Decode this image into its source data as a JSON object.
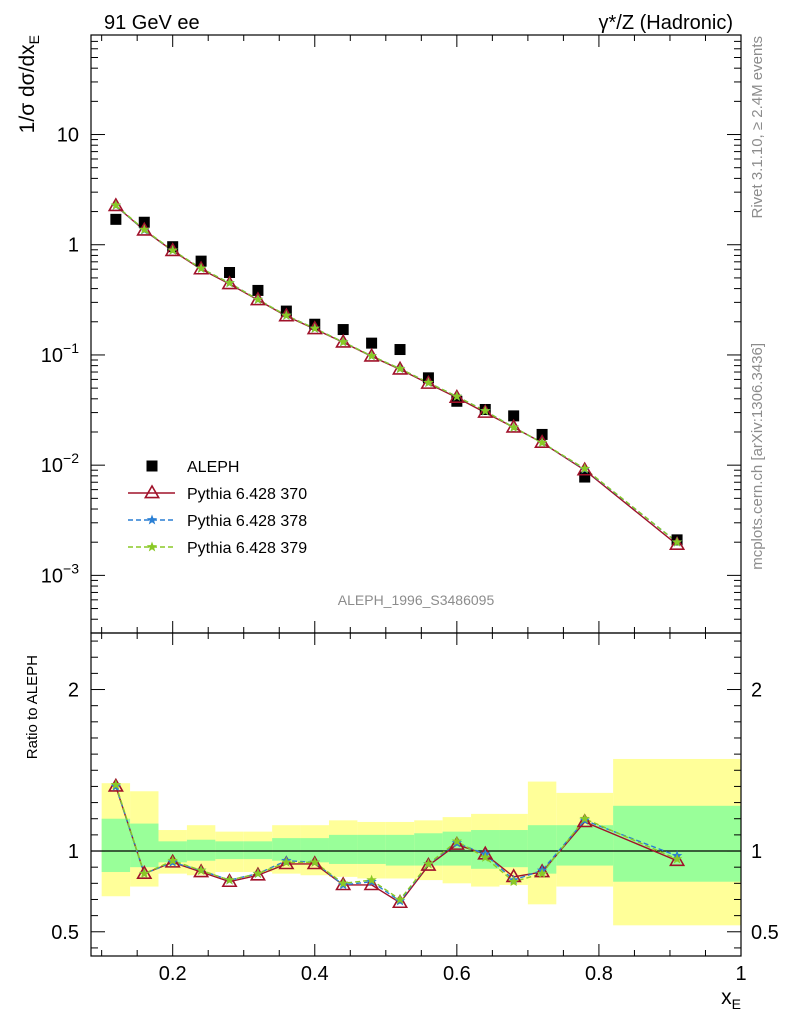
{
  "header": {
    "left": "91 GeV ee",
    "right": "γ*/Z (Hadronic)"
  },
  "side_labels": {
    "rivet": "Rivet 3.1.10, ≥ 2.4M events",
    "mcplots": "mcplots.cern.ch [arXiv:1306.3436]"
  },
  "watermark": "ALEPH_1996_S3486095",
  "chart_data": [
    {
      "type": "scatter",
      "panel": "main",
      "ylabel": "1/σ dσ/dx_E",
      "yscale": "log",
      "ylim": [
        0.0003,
        80
      ],
      "xlim": [
        0.085,
        1.0
      ],
      "yticks": [
        {
          "v": 10,
          "label": "10"
        },
        {
          "v": 1,
          "label": "1"
        },
        {
          "v": 0.1,
          "base": "10",
          "exp": "−1"
        },
        {
          "v": 0.01,
          "base": "10",
          "exp": "−2"
        },
        {
          "v": 0.001,
          "base": "10",
          "exp": "−3"
        }
      ],
      "legend_position": "lower-left",
      "series": [
        {
          "name": "ALEPH",
          "color": "#000000",
          "marker": "square",
          "x": [
            0.12,
            0.16,
            0.2,
            0.24,
            0.28,
            0.32,
            0.36,
            0.4,
            0.44,
            0.48,
            0.52,
            0.56,
            0.6,
            0.64,
            0.68,
            0.72,
            0.78,
            0.91
          ],
          "y": [
            1.7,
            1.6,
            0.96,
            0.71,
            0.56,
            0.385,
            0.25,
            0.19,
            0.17,
            0.128,
            0.112,
            0.062,
            0.038,
            0.032,
            0.028,
            0.019,
            0.0078,
            0.0021
          ]
        },
        {
          "name": "Pythia 6.428 370",
          "color": "#a0122a",
          "marker": "triangle",
          "dash": "solid",
          "x": [
            0.12,
            0.16,
            0.2,
            0.24,
            0.28,
            0.32,
            0.36,
            0.4,
            0.44,
            0.48,
            0.52,
            0.56,
            0.6,
            0.64,
            0.68,
            0.72,
            0.78,
            0.91
          ],
          "y": [
            2.25,
            1.35,
            0.88,
            0.6,
            0.44,
            0.315,
            0.225,
            0.172,
            0.13,
            0.097,
            0.074,
            0.055,
            0.041,
            0.03,
            0.022,
            0.016,
            0.009,
            0.0019
          ]
        },
        {
          "name": "Pythia 6.428 378",
          "color": "#2a7fd4",
          "marker": "star",
          "dash": "dashed",
          "x": [
            0.12,
            0.16,
            0.2,
            0.24,
            0.28,
            0.32,
            0.36,
            0.4,
            0.44,
            0.48,
            0.52,
            0.56,
            0.6,
            0.64,
            0.68,
            0.72,
            0.78,
            0.91
          ],
          "y": [
            2.27,
            1.36,
            0.89,
            0.61,
            0.45,
            0.318,
            0.228,
            0.174,
            0.131,
            0.098,
            0.075,
            0.056,
            0.042,
            0.031,
            0.022,
            0.016,
            0.0092,
            0.002
          ]
        },
        {
          "name": "Pythia 6.428 379",
          "color": "#8ac926",
          "marker": "star",
          "dash": "dashed",
          "x": [
            0.12,
            0.16,
            0.2,
            0.24,
            0.28,
            0.32,
            0.36,
            0.4,
            0.44,
            0.48,
            0.52,
            0.56,
            0.6,
            0.64,
            0.68,
            0.72,
            0.78,
            0.91
          ],
          "y": [
            2.28,
            1.37,
            0.89,
            0.61,
            0.45,
            0.318,
            0.228,
            0.174,
            0.131,
            0.098,
            0.075,
            0.056,
            0.042,
            0.031,
            0.022,
            0.016,
            0.0093,
            0.002
          ]
        }
      ]
    },
    {
      "type": "line",
      "panel": "ratio",
      "ylabel": "Ratio to ALEPH",
      "xlabel": "x_E",
      "ylim": [
        0.35,
        2.35
      ],
      "xlim": [
        0.085,
        1.0
      ],
      "yticks": [
        0.5,
        1,
        2
      ],
      "xticks": [
        {
          "v": 0.2,
          "label": "0.2"
        },
        {
          "v": 0.4,
          "label": "0.4"
        },
        {
          "v": 0.6,
          "label": "0.6"
        },
        {
          "v": 0.8,
          "label": "0.8"
        },
        {
          "v": 1.0,
          "label": "1"
        }
      ],
      "bands": {
        "xlow": [
          0.1,
          0.14,
          0.18,
          0.22,
          0.26,
          0.3,
          0.34,
          0.38,
          0.42,
          0.46,
          0.5,
          0.54,
          0.58,
          0.62,
          0.66,
          0.7,
          0.74,
          0.82
        ],
        "xhigh": [
          0.14,
          0.18,
          0.22,
          0.26,
          0.3,
          0.34,
          0.38,
          0.42,
          0.46,
          0.5,
          0.54,
          0.58,
          0.62,
          0.66,
          0.7,
          0.74,
          0.82,
          1.0
        ],
        "outer_lo": [
          0.72,
          0.78,
          0.86,
          0.85,
          0.87,
          0.87,
          0.86,
          0.85,
          0.84,
          0.83,
          0.83,
          0.82,
          0.8,
          0.78,
          0.79,
          0.67,
          0.78,
          0.54
        ],
        "outer_hi": [
          1.42,
          1.37,
          1.13,
          1.16,
          1.12,
          1.12,
          1.16,
          1.16,
          1.19,
          1.18,
          1.18,
          1.19,
          1.21,
          1.23,
          1.23,
          1.43,
          1.36,
          1.57
        ],
        "inner_lo": [
          0.87,
          0.9,
          0.93,
          0.94,
          0.95,
          0.95,
          0.94,
          0.93,
          0.92,
          0.92,
          0.91,
          0.91,
          0.91,
          0.89,
          0.9,
          0.86,
          0.91,
          0.81
        ],
        "inner_hi": [
          1.2,
          1.17,
          1.06,
          1.07,
          1.06,
          1.06,
          1.08,
          1.08,
          1.1,
          1.1,
          1.1,
          1.11,
          1.12,
          1.13,
          1.13,
          1.16,
          1.16,
          1.28
        ],
        "outer_color": "#ffff99",
        "inner_color": "#99ff99"
      },
      "reference_line": 1.0,
      "series": [
        {
          "name": "Pythia 6.428 370",
          "color": "#a0122a",
          "marker": "triangle",
          "dash": "solid",
          "x": [
            0.12,
            0.16,
            0.2,
            0.24,
            0.28,
            0.32,
            0.36,
            0.4,
            0.44,
            0.48,
            0.52,
            0.56,
            0.6,
            0.64,
            0.68,
            0.72,
            0.78,
            0.91
          ],
          "y": [
            1.4,
            0.86,
            0.93,
            0.87,
            0.81,
            0.85,
            0.92,
            0.92,
            0.79,
            0.79,
            0.68,
            0.91,
            1.04,
            0.98,
            0.84,
            0.87,
            1.18,
            0.94
          ]
        },
        {
          "name": "Pythia 6.428 378",
          "color": "#2a7fd4",
          "marker": "star",
          "dash": "dashed",
          "x": [
            0.12,
            0.16,
            0.2,
            0.24,
            0.28,
            0.32,
            0.36,
            0.4,
            0.44,
            0.48,
            0.52,
            0.56,
            0.6,
            0.64,
            0.68,
            0.72,
            0.78,
            0.91
          ],
          "y": [
            1.4,
            0.86,
            0.93,
            0.88,
            0.82,
            0.86,
            0.94,
            0.93,
            0.79,
            0.81,
            0.69,
            0.92,
            1.05,
            0.98,
            0.82,
            0.88,
            1.19,
            0.97
          ]
        },
        {
          "name": "Pythia 6.428 379",
          "color": "#8ac926",
          "marker": "star",
          "dash": "dashed",
          "x": [
            0.12,
            0.16,
            0.2,
            0.24,
            0.28,
            0.32,
            0.36,
            0.4,
            0.44,
            0.48,
            0.52,
            0.56,
            0.6,
            0.64,
            0.68,
            0.72,
            0.78,
            0.91
          ],
          "y": [
            1.41,
            0.86,
            0.94,
            0.88,
            0.82,
            0.86,
            0.93,
            0.93,
            0.8,
            0.82,
            0.7,
            0.92,
            1.06,
            0.96,
            0.81,
            0.86,
            1.2,
            0.95
          ]
        }
      ]
    }
  ]
}
